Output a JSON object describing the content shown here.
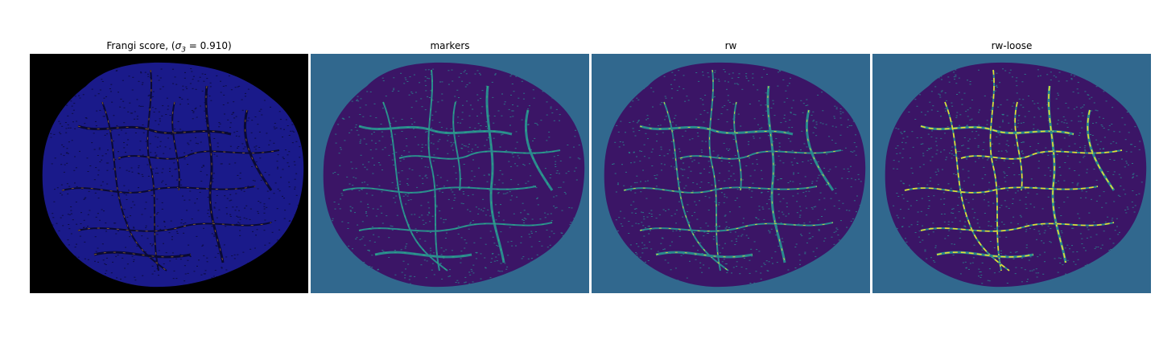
{
  "panels": [
    {
      "title_prefix": "Frangi score, (",
      "title_sigma": "σ",
      "title_sub": "3",
      "title_suffix": " = 0.910)",
      "background": "#000000",
      "tissue": "#1a1a8a",
      "vessel": "#0a0a33",
      "highlight": "#f0a030"
    },
    {
      "title": "markers",
      "background": "#31688e",
      "tissue": "#3b1566",
      "vessel": "#2a8a8e",
      "highlight": "#35b779"
    },
    {
      "title": "rw",
      "background": "#31688e",
      "tissue": "#3b1566",
      "vessel": "#2a8a8e",
      "highlight": "#fde725"
    },
    {
      "title": "rw-loose",
      "background": "#31688e",
      "tissue": "#3b1566",
      "vessel": "#2a8a8e",
      "highlight": "#fde725"
    }
  ]
}
